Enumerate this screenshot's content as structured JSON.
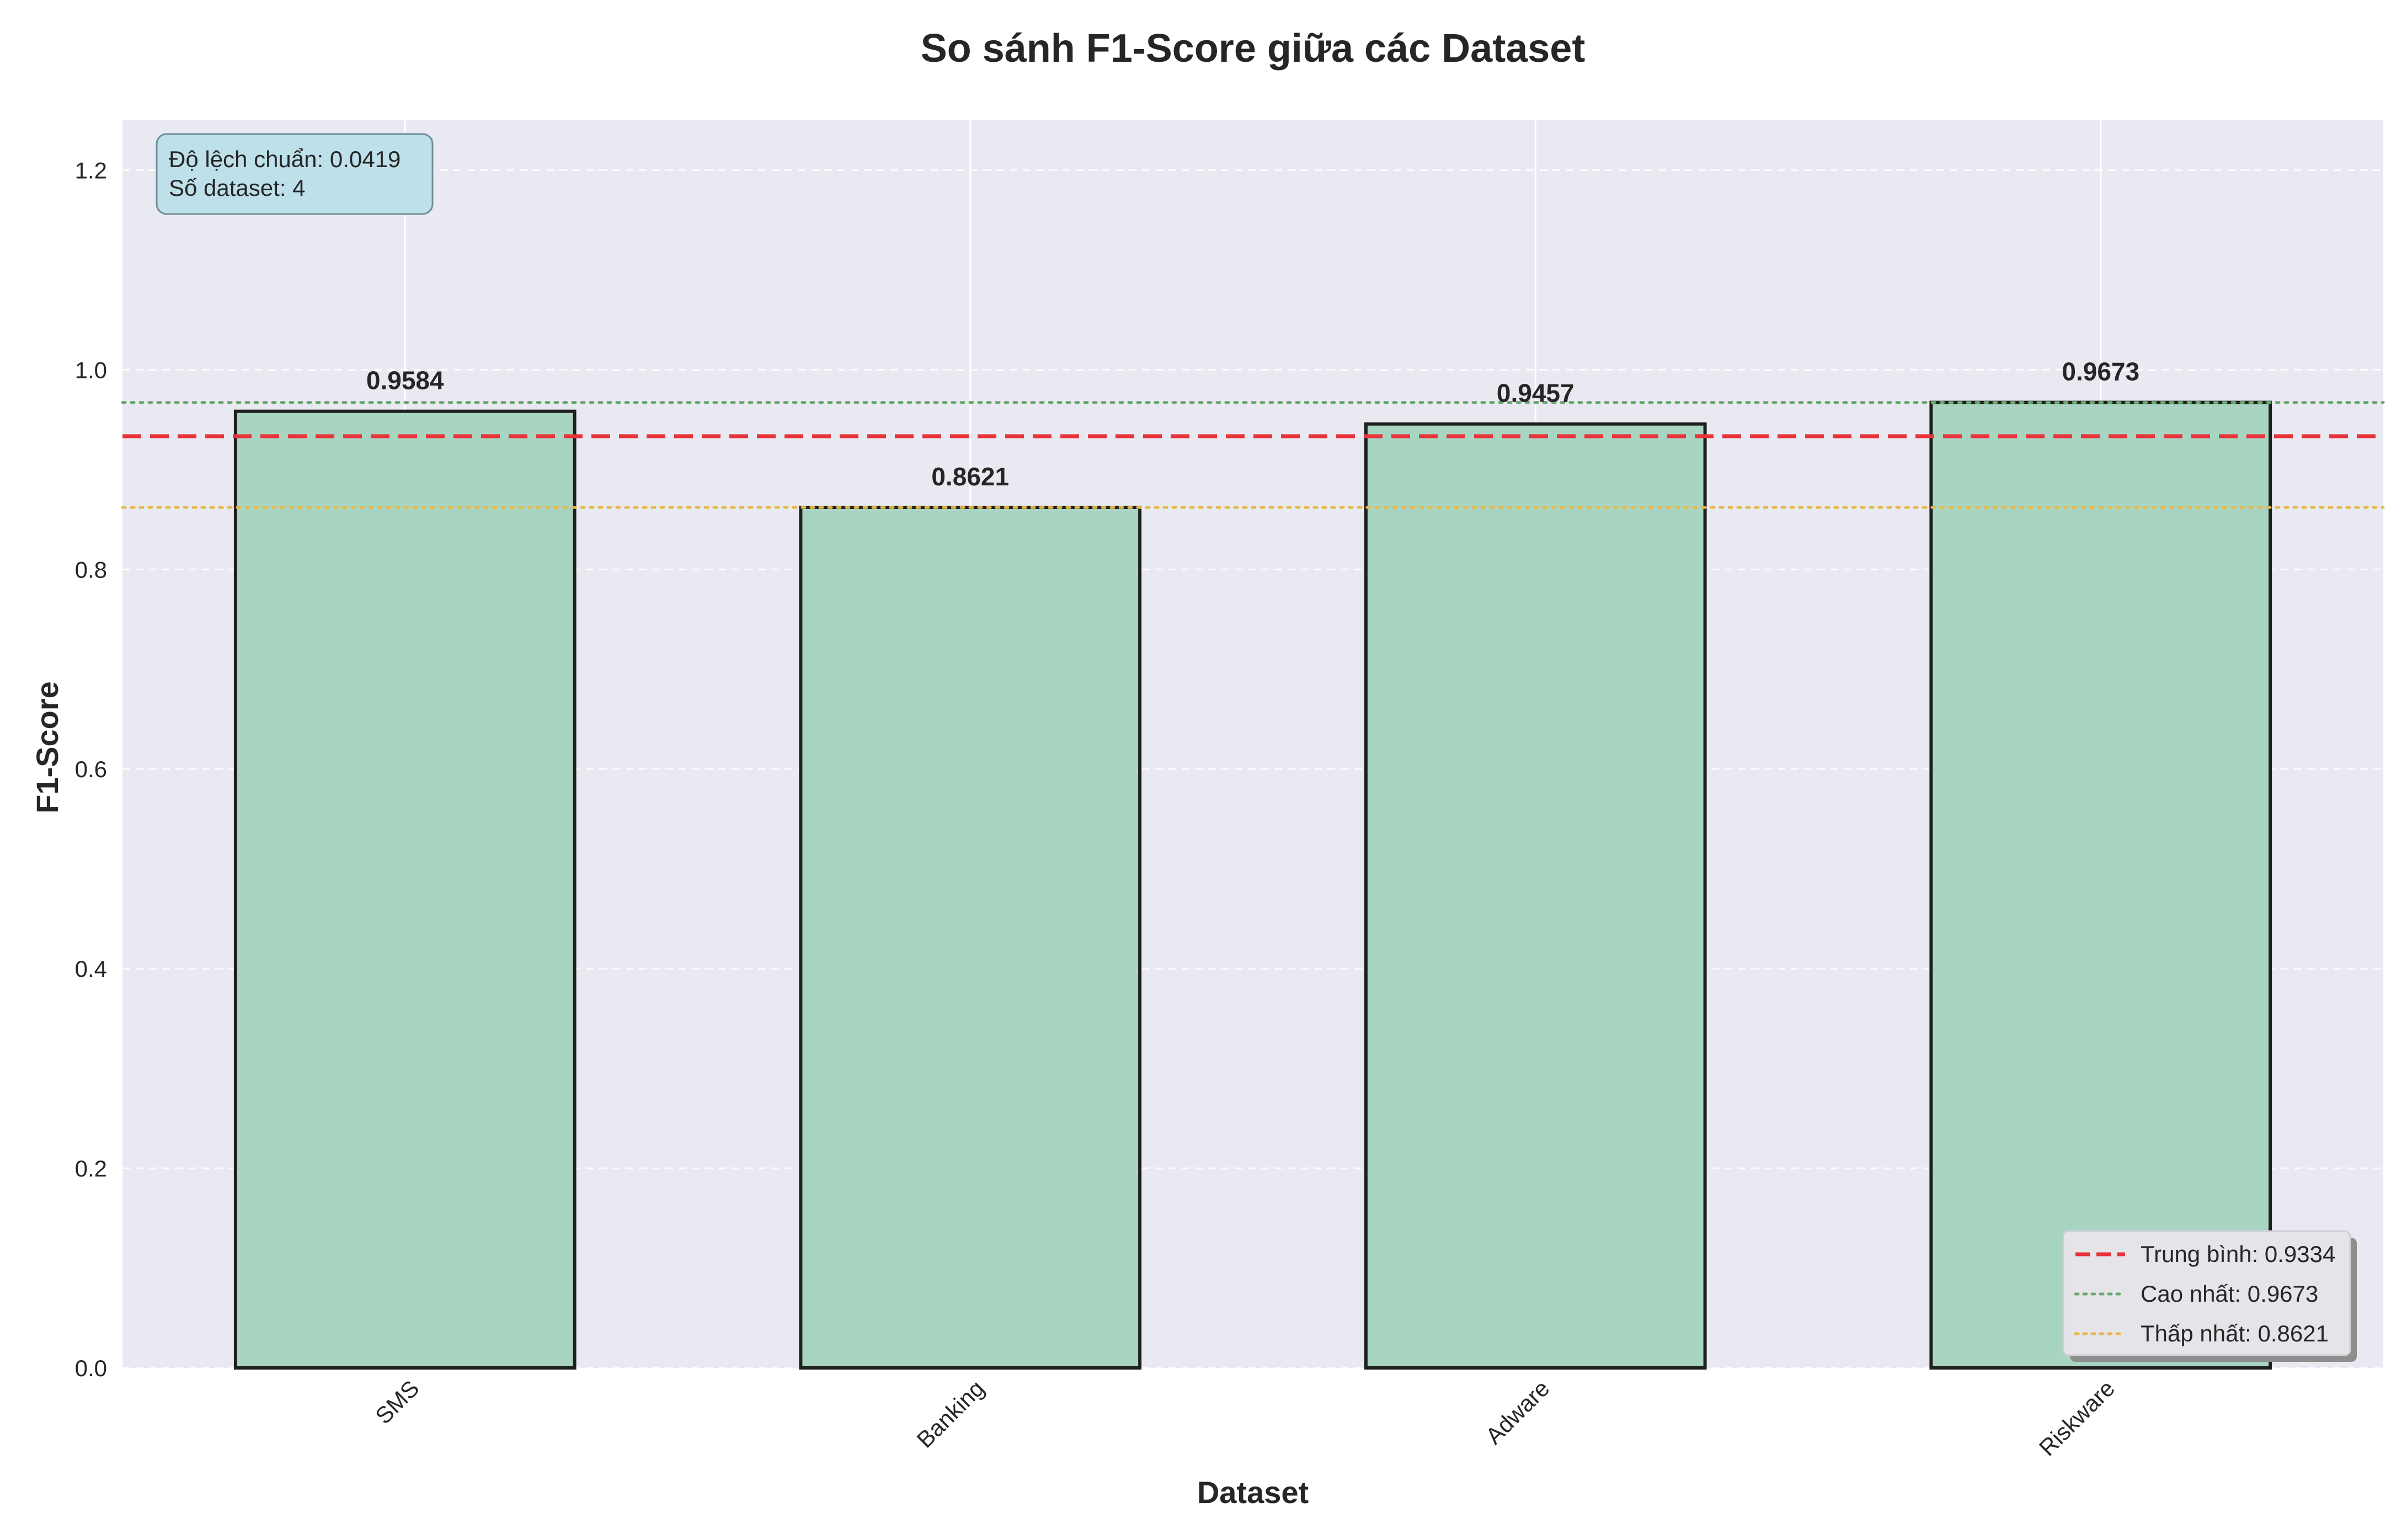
{
  "chart_data": {
    "type": "bar",
    "title": "So sánh F1-Score giữa các Dataset",
    "xlabel": "Dataset",
    "ylabel": "F1-Score",
    "categories": [
      "SMS",
      "Banking",
      "Adware",
      "Riskware"
    ],
    "values": [
      0.9584,
      0.8621,
      0.9457,
      0.9673
    ],
    "value_labels": [
      "0.9584",
      "0.8621",
      "0.9457",
      "0.9673"
    ],
    "ylim": [
      0,
      1.25
    ],
    "yticks": [
      0.0,
      0.2,
      0.4,
      0.6,
      0.8,
      1.0,
      1.2
    ],
    "ytick_labels": [
      "0.0",
      "0.2",
      "0.4",
      "0.6",
      "0.8",
      "1.0",
      "1.2"
    ],
    "grid": true,
    "bar_color": "#a8d5c2",
    "bar_edge_color": "#1f1f1f",
    "plot_background": "#e9e9f1",
    "reference_lines": [
      {
        "label": "Trung bình: 0.9334",
        "value": 0.9334,
        "color": "#e8333a",
        "style": "dashed"
      },
      {
        "label": "Cao nhất: 0.9673",
        "value": 0.9673,
        "color": "#6aa86f",
        "style": "dotted"
      },
      {
        "label": "Thấp nhất: 0.8621",
        "value": 0.8621,
        "color": "#e8b84a",
        "style": "dotted"
      }
    ],
    "legend_position": "bottom-right",
    "stats_box": {
      "lines": [
        "Độ lệch chuẩn: 0.0419",
        "Số dataset: 4"
      ],
      "background": "#bde0ea",
      "position": "top-left"
    }
  }
}
